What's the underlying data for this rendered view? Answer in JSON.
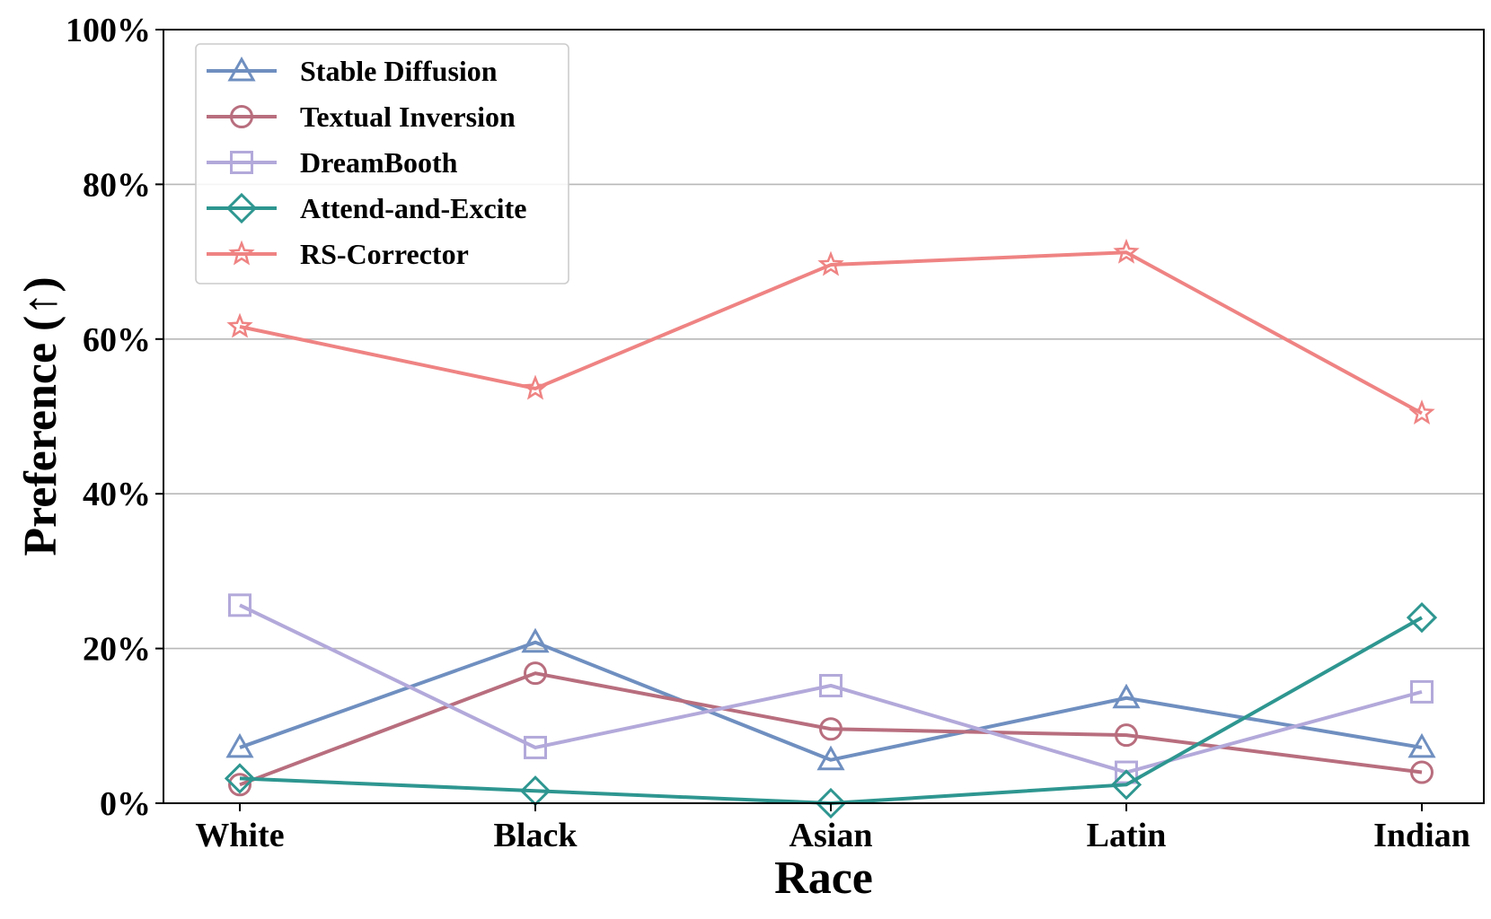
{
  "chart_data": {
    "type": "line",
    "title": "",
    "xlabel": "Race",
    "ylabel": "Preference (↑)",
    "categories": [
      "White",
      "Black",
      "Asian",
      "Latin",
      "Indian"
    ],
    "ylim": [
      0,
      100
    ],
    "yticks": [
      0,
      20,
      40,
      60,
      80,
      100
    ],
    "ytick_labels": [
      "0%",
      "20%",
      "40%",
      "60%",
      "80%",
      "100%"
    ],
    "grid": "horizontal",
    "legend_position": "top-left",
    "series": [
      {
        "name": "Stable Diffusion",
        "marker": "triangle",
        "color": "#6F8FC0",
        "values": [
          7.2,
          20.8,
          5.6,
          13.6,
          7.2
        ]
      },
      {
        "name": "Textual Inversion",
        "marker": "circle",
        "color": "#B86E7E",
        "values": [
          2.4,
          16.8,
          9.6,
          8.8,
          4.0
        ]
      },
      {
        "name": "DreamBooth",
        "marker": "square",
        "color": "#B3A9DA",
        "values": [
          25.6,
          7.2,
          15.2,
          4.0,
          14.4
        ]
      },
      {
        "name": "Attend-and-Excite",
        "marker": "diamond",
        "color": "#2E9690",
        "values": [
          3.2,
          1.6,
          0.0,
          2.4,
          24.0
        ]
      },
      {
        "name": "RS-Corrector",
        "marker": "star",
        "color": "#EF8383",
        "values": [
          61.6,
          53.6,
          69.6,
          71.2,
          50.4
        ]
      }
    ]
  }
}
